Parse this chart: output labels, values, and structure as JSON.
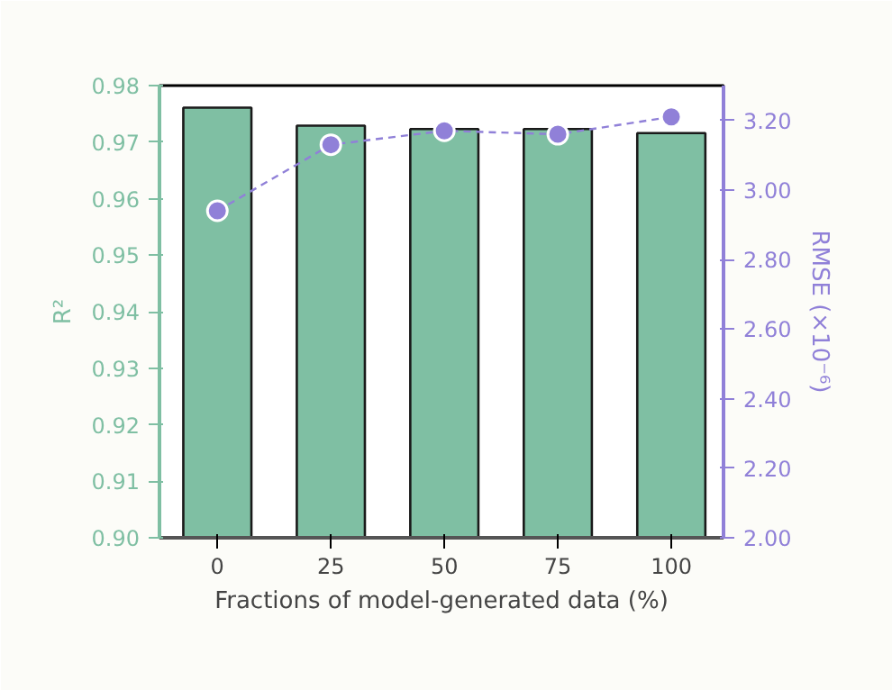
{
  "chart_data": {
    "type": "bar",
    "xlabel": "Fractions of model-generated data (%)",
    "ylabel": "R²",
    "y2label": "RMSE (×10⁻⁶)",
    "categories": [
      "0",
      "25",
      "50",
      "75",
      "100"
    ],
    "series": [
      {
        "color": "#7fbfa3",
        "values": [
          0.9761,
          0.9729,
          0.9723,
          0.9723,
          0.9716
        ]
      },
      {
        "type": "line",
        "axis": "y2",
        "color": "#9080d8",
        "values": [
          2.94,
          3.13,
          3.17,
          3.16,
          3.21
        ],
        "marker": "circle",
        "line_style": "dashed"
      }
    ],
    "ylim": [
      0.9,
      0.98
    ],
    "yticks": [
      {
        "value": 0.9,
        "label": "0.90"
      },
      0.91,
      0.92,
      0.93,
      0.94,
      0.95,
      0.96,
      0.97,
      0.98
    ],
    "y2lim": [
      2.0,
      3.3
    ],
    "y2ticks": [
      {
        "value": 2.0,
        "label": "2.00"
      },
      {
        "value": 2.2,
        "label": "2.20"
      },
      {
        "value": 2.4,
        "label": "2.40"
      },
      {
        "value": 2.6,
        "label": "2.60"
      },
      {
        "value": 2.8,
        "label": "2.80"
      },
      {
        "value": 3.0,
        "label": "3.00"
      },
      {
        "value": 3.2,
        "label": "3.20"
      }
    ],
    "grid": false
  }
}
